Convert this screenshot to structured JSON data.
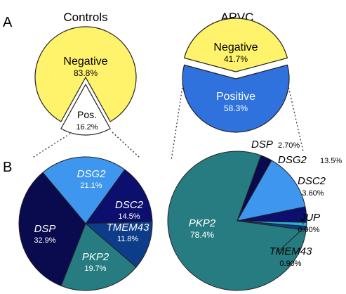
{
  "panels": [
    {
      "letter": "A"
    },
    {
      "letter": "B"
    }
  ],
  "colors": {
    "negative": "#fff36b",
    "positive": "#2f72dd",
    "pos_controls": "#ffffff",
    "dsg2": "#3f96ee",
    "dsc2": "#0d0f6e",
    "tmem43": "#0d3c88",
    "pkp2": "#267c80",
    "dsp": "#0a0a4e",
    "jup": "#27b1d8",
    "outline": "#222222"
  },
  "chart_data": [
    {
      "type": "pie",
      "title": "Controls",
      "slices": [
        {
          "label": "Negative",
          "value": 83.8,
          "value_text": "83.8%"
        },
        {
          "label": "Pos.",
          "value": 16.2,
          "value_text": "16.2%",
          "exploded": true
        }
      ]
    },
    {
      "type": "pie",
      "title": "ARVC",
      "slices": [
        {
          "label": "Negative",
          "value": 41.7,
          "value_text": "41.7%",
          "exploded": true
        },
        {
          "label": "Positive",
          "value": 58.3,
          "value_text": "58.3%"
        }
      ]
    },
    {
      "type": "pie",
      "title": "",
      "subset_of": "Controls Pos.",
      "slices": [
        {
          "label": "DSG2",
          "value": 21.1,
          "value_text": "21.1%"
        },
        {
          "label": "DSC2",
          "value": 14.5,
          "value_text": "14.5%"
        },
        {
          "label": "TMEM43",
          "value": 11.8,
          "value_text": "11.8%"
        },
        {
          "label": "PKP2",
          "value": 19.7,
          "value_text": "19.7%"
        },
        {
          "label": "DSP",
          "value": 32.9,
          "value_text": "32.9%"
        }
      ]
    },
    {
      "type": "pie",
      "title": "",
      "subset_of": "ARVC Positive",
      "slices": [
        {
          "label": "DSP",
          "value": 2.7,
          "value_text": "2.70%"
        },
        {
          "label": "DSG2",
          "value": 13.5,
          "value_text": "13.5%"
        },
        {
          "label": "DSC2",
          "value": 3.6,
          "value_text": "3.60%"
        },
        {
          "label": "JUP",
          "value": 0.9,
          "value_text": "0.90%"
        },
        {
          "label": "TMEM43",
          "value": 0.9,
          "value_text": "0.90%"
        },
        {
          "label": "PKP2",
          "value": 78.4,
          "value_text": "78.4%"
        }
      ]
    }
  ]
}
